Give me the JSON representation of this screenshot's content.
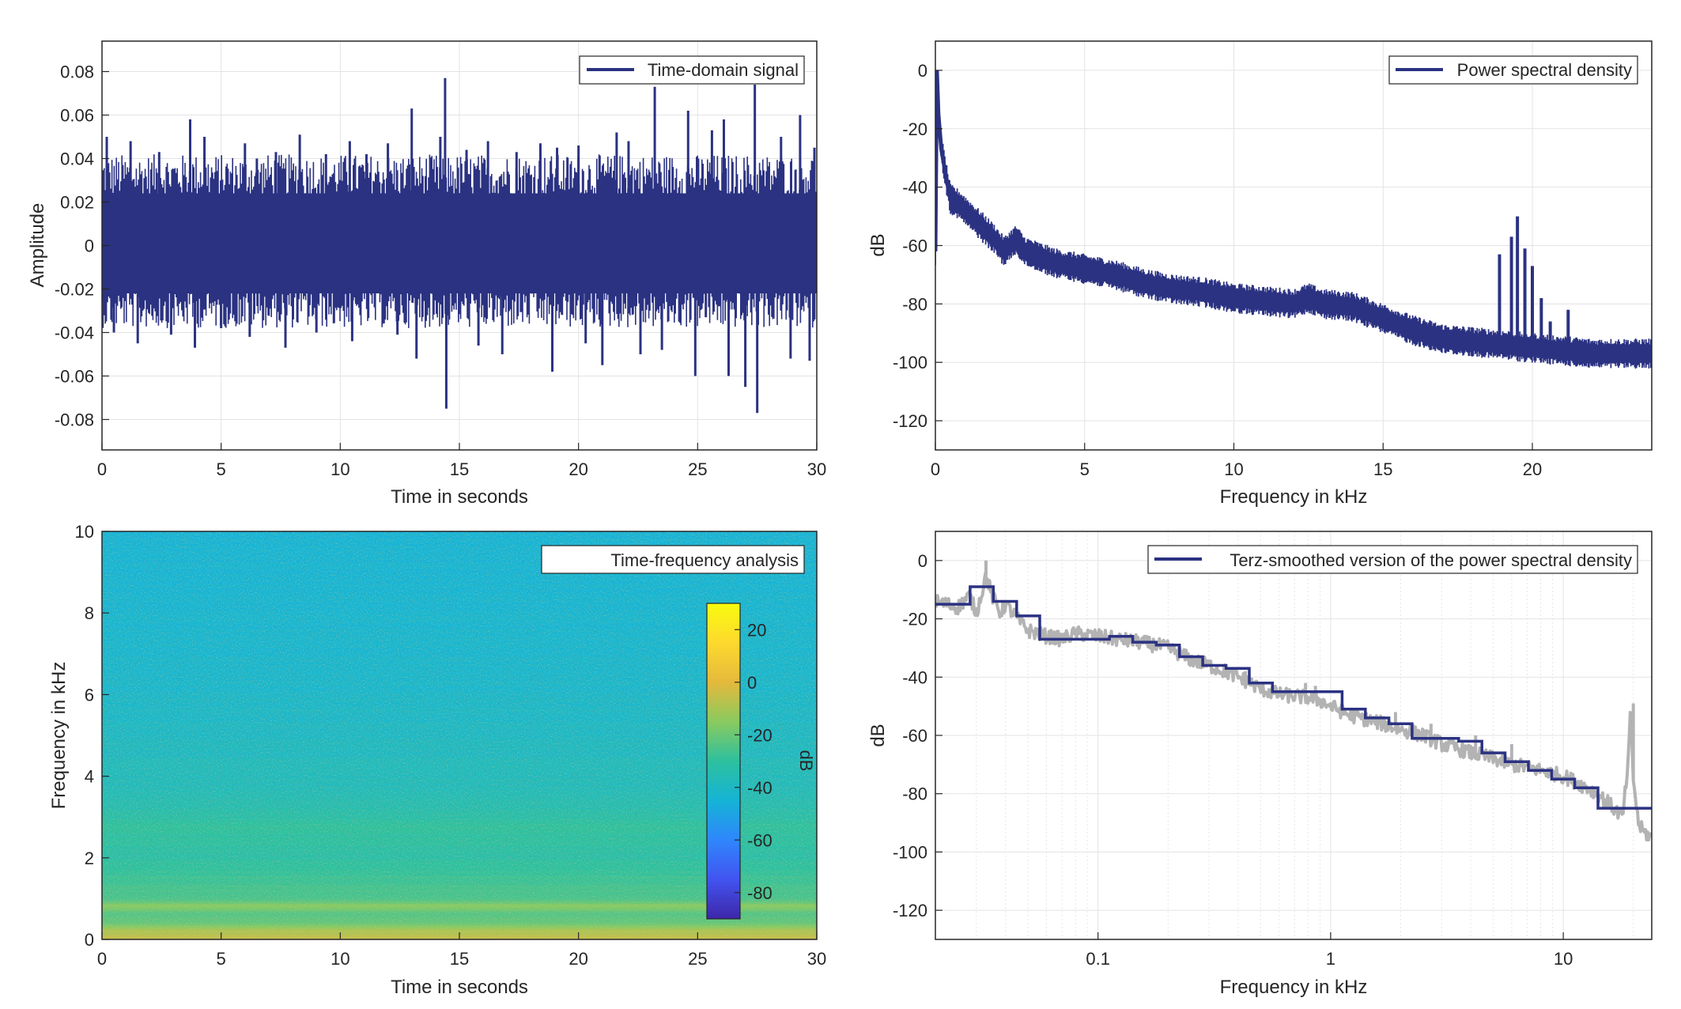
{
  "chart_data": [
    {
      "id": "time",
      "type": "line",
      "xlabel": "Time in seconds",
      "ylabel": "Amplitude",
      "xlim": [
        0,
        30
      ],
      "ylim": [
        -0.094,
        0.094
      ],
      "xticks": [
        0,
        5,
        10,
        15,
        20,
        25,
        30
      ],
      "yticks": [
        -0.08,
        -0.06,
        -0.04,
        -0.02,
        0,
        0.02,
        0.04,
        0.06,
        0.08
      ],
      "ytick_labels": [
        "-0.08",
        "-0.06",
        "-0.04",
        "-0.02",
        "0",
        "0.02",
        "0.04",
        "0.06",
        "0.08"
      ],
      "grid": true,
      "legend_position": "top-right",
      "series": [
        {
          "name": "Time-domain signal",
          "color": "#2B3282",
          "band": {
            "upper": 0.024,
            "lower": -0.022
          },
          "peaks": [
            [
              0.2,
              0.05
            ],
            [
              0.5,
              -0.04
            ],
            [
              1.2,
              0.048
            ],
            [
              1.5,
              -0.045
            ],
            [
              2.4,
              0.043
            ],
            [
              2.9,
              -0.041
            ],
            [
              3.7,
              0.058
            ],
            [
              3.9,
              -0.047
            ],
            [
              4.3,
              0.05
            ],
            [
              5.0,
              -0.038
            ],
            [
              6.0,
              0.047
            ],
            [
              6.2,
              -0.042
            ],
            [
              6.5,
              0.04
            ],
            [
              7.3,
              0.043
            ],
            [
              7.7,
              -0.047
            ],
            [
              8.3,
              0.051
            ],
            [
              9.0,
              -0.04
            ],
            [
              9.4,
              0.042
            ],
            [
              10.4,
              0.048
            ],
            [
              10.5,
              -0.044
            ],
            [
              11.1,
              0.042
            ],
            [
              12.0,
              0.047
            ],
            [
              12.4,
              -0.041
            ],
            [
              13.0,
              0.063
            ],
            [
              13.2,
              -0.052
            ],
            [
              14.2,
              0.05
            ],
            [
              14.4,
              0.077
            ],
            [
              14.45,
              -0.075
            ],
            [
              15.3,
              0.044
            ],
            [
              15.8,
              -0.046
            ],
            [
              16.2,
              0.048
            ],
            [
              16.8,
              -0.05
            ],
            [
              17.4,
              0.043
            ],
            [
              18.4,
              0.047
            ],
            [
              18.9,
              -0.058
            ],
            [
              19.1,
              0.045
            ],
            [
              20.0,
              0.046
            ],
            [
              20.3,
              -0.045
            ],
            [
              21.0,
              -0.055
            ],
            [
              21.6,
              0.052
            ],
            [
              22.1,
              0.048
            ],
            [
              22.6,
              -0.05
            ],
            [
              23.2,
              0.073
            ],
            [
              23.5,
              -0.048
            ],
            [
              24.6,
              0.062
            ],
            [
              24.9,
              -0.06
            ],
            [
              25.6,
              0.053
            ],
            [
              26.1,
              0.058
            ],
            [
              26.3,
              -0.06
            ],
            [
              27.0,
              -0.065
            ],
            [
              27.4,
              0.074
            ],
            [
              27.5,
              -0.077
            ],
            [
              28.5,
              0.05
            ],
            [
              28.9,
              -0.052
            ],
            [
              29.3,
              0.06
            ],
            [
              29.7,
              -0.053
            ],
            [
              29.9,
              0.045
            ]
          ]
        }
      ]
    },
    {
      "id": "psd",
      "type": "line",
      "xlabel": "Frequency in kHz",
      "ylabel": "dB",
      "xlim": [
        0,
        24
      ],
      "ylim": [
        -130,
        10
      ],
      "xticks": [
        0,
        5,
        10,
        15,
        20
      ],
      "yticks": [
        -120,
        -100,
        -80,
        -60,
        -40,
        -20,
        0
      ],
      "grid": true,
      "legend_position": "top-right",
      "series": [
        {
          "name": "Power spectral density",
          "color": "#2B3282",
          "thickness_db": 6,
          "x": [
            0,
            0.05,
            0.1,
            0.2,
            0.35,
            0.5,
            0.8,
            1,
            1.5,
            2,
            2.3,
            2.7,
            3,
            4,
            5,
            6,
            7,
            8,
            9,
            10,
            11,
            12,
            12.5,
            13,
            14,
            15,
            16,
            17,
            18,
            19,
            20,
            21,
            22,
            23,
            24
          ],
          "y": [
            -62,
            0,
            -15,
            -27,
            -36,
            -44,
            -46,
            -48,
            -53,
            -58,
            -62,
            -58,
            -62,
            -66,
            -68,
            -70,
            -73,
            -75,
            -76,
            -78,
            -79,
            -80,
            -78,
            -80,
            -81,
            -85,
            -89,
            -92,
            -93,
            -94,
            -95,
            -96,
            -97,
            -97,
            -97
          ],
          "spikes": [
            [
              18.9,
              -63
            ],
            [
              19.3,
              -57
            ],
            [
              19.5,
              -50
            ],
            [
              19.75,
              -61
            ],
            [
              20.0,
              -67
            ],
            [
              20.3,
              -78
            ],
            [
              20.6,
              -86
            ],
            [
              21.2,
              -82
            ]
          ]
        }
      ]
    },
    {
      "id": "spectrogram",
      "type": "heatmap",
      "xlabel": "Time in seconds",
      "ylabel": "Frequency in kHz",
      "xlim": [
        0,
        30
      ],
      "ylim": [
        0,
        10
      ],
      "xticks": [
        0,
        5,
        10,
        15,
        20,
        25,
        30
      ],
      "yticks": [
        0,
        2,
        4,
        6,
        8,
        10
      ],
      "legend_position": "top-right",
      "legend_text": "Time-frequency analysis",
      "colorbar": {
        "label": "dB",
        "range": [
          -90,
          30
        ],
        "ticks": [
          -80,
          -60,
          -40,
          -20,
          0,
          20
        ],
        "colors": [
          "#3E26A8",
          "#4254F0",
          "#2F86FC",
          "#15B4D6",
          "#2DC09E",
          "#8ACA5F",
          "#E4B93C",
          "#FDD92E",
          "#F9FB0E"
        ]
      },
      "level_profile": {
        "freq_khz": [
          0,
          0.2,
          0.35,
          0.6,
          0.8,
          0.95,
          1.5,
          2.0,
          2.7,
          3.5,
          5.0,
          6.0,
          8.0,
          10
        ],
        "db": [
          -5,
          -10,
          -20,
          -25,
          -15,
          -25,
          -28,
          -32,
          -30,
          -37,
          -40,
          -42,
          -44,
          -45
        ]
      }
    },
    {
      "id": "terz",
      "type": "line",
      "xlabel": "Frequency in kHz",
      "ylabel": "dB",
      "xscale": "log",
      "xlim": [
        0.02,
        24
      ],
      "ylim": [
        -130,
        10
      ],
      "xticks": [
        0.1,
        1,
        10
      ],
      "xtick_labels": [
        "0.1",
        "1",
        "10"
      ],
      "yticks": [
        -120,
        -100,
        -80,
        -60,
        -40,
        -20,
        0
      ],
      "grid": true,
      "legend_position": "top-right",
      "series": [
        {
          "name": "Terz-smoothed version of the power spectral density",
          "color": "#2B3282",
          "step": true,
          "edges": [
            0.02,
            0.0282,
            0.0355,
            0.0447,
            0.0562,
            0.0708,
            0.0891,
            0.112,
            0.141,
            0.178,
            0.224,
            0.282,
            0.355,
            0.447,
            0.562,
            0.708,
            0.891,
            1.12,
            1.41,
            1.78,
            2.24,
            2.82,
            3.55,
            4.47,
            5.62,
            7.08,
            8.91,
            11.2,
            14.1,
            24
          ],
          "values": [
            -15,
            -9,
            -14,
            -19,
            -27,
            -27,
            -27,
            -26,
            -28,
            -29,
            -33,
            -36,
            -37,
            -42,
            -45,
            -45,
            -45,
            -51,
            -54,
            -56,
            -61,
            -61,
            -62,
            -66,
            -69,
            -72,
            -75,
            -78,
            -85
          ]
        },
        {
          "name": "",
          "color": "#B3B3B3",
          "x": [
            0.02,
            0.025,
            0.028,
            0.03,
            0.033,
            0.035,
            0.038,
            0.04,
            0.045,
            0.05,
            0.06,
            0.07,
            0.08,
            0.1,
            0.12,
            0.15,
            0.2,
            0.25,
            0.3,
            0.4,
            0.5,
            0.6,
            0.8,
            0.9,
            1.0,
            1.2,
            1.5,
            2.0,
            2.5,
            3.0,
            4.0,
            5.0,
            6.0,
            8.0,
            10,
            12,
            14,
            16,
            18,
            19,
            19.5,
            20,
            21,
            22,
            24
          ],
          "y": [
            -14,
            -16,
            -12,
            -18,
            -5,
            -12,
            -18,
            -15,
            -20,
            -24,
            -26,
            -27,
            -25,
            -26,
            -27,
            -28,
            -30,
            -34,
            -36,
            -40,
            -44,
            -46,
            -47,
            -48,
            -50,
            -53,
            -55,
            -58,
            -60,
            -63,
            -66,
            -68,
            -70,
            -72,
            -74,
            -77,
            -80,
            -84,
            -88,
            -70,
            -50,
            -75,
            -90,
            -93,
            -95
          ],
          "spikes": [
            [
              0.033,
              0
            ],
            [
              0.29,
              -34
            ],
            [
              0.43,
              -38
            ],
            [
              0.78,
              -42
            ],
            [
              0.86,
              -43
            ],
            [
              1.9,
              -52
            ],
            [
              2.7,
              -56
            ],
            [
              4.2,
              -60
            ],
            [
              6.0,
              -63
            ],
            [
              8.6,
              -71
            ],
            [
              12.0,
              -78
            ],
            [
              20.0,
              -49
            ]
          ]
        }
      ]
    }
  ]
}
